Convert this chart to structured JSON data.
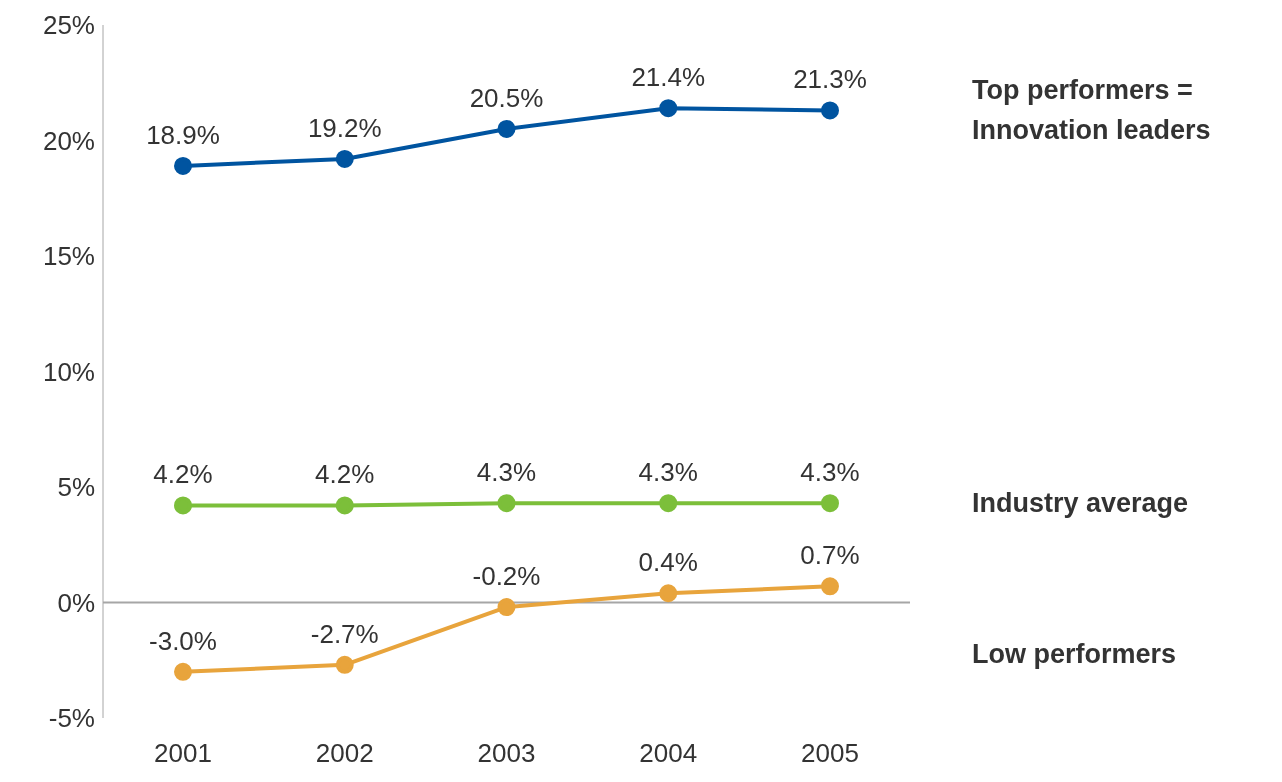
{
  "chart_data": {
    "type": "line",
    "categories": [
      "2001",
      "2002",
      "2003",
      "2004",
      "2005"
    ],
    "series": [
      {
        "name": "Top performers = Innovation leaders",
        "color": "#0054a0",
        "values": [
          18.9,
          19.2,
          20.5,
          21.4,
          21.3
        ],
        "value_labels": [
          "18.9%",
          "19.2%",
          "20.5%",
          "21.4%",
          "21.3%"
        ]
      },
      {
        "name": "Industry average",
        "color": "#7cbf3a",
        "values": [
          4.2,
          4.2,
          4.3,
          4.3,
          4.3
        ],
        "value_labels": [
          "4.2%",
          "4.2%",
          "4.3%",
          "4.3%",
          "4.3%"
        ]
      },
      {
        "name": "Low performers",
        "color": "#e8a43c",
        "values": [
          -3.0,
          -2.7,
          -0.2,
          0.4,
          0.7
        ],
        "value_labels": [
          "-3.0%",
          "-2.7%",
          "-0.2%",
          "0.4%",
          "0.7%"
        ]
      }
    ],
    "ylim": [
      -5,
      25
    ],
    "yticks": [
      {
        "value": -5,
        "label": "-5%"
      },
      {
        "value": 0,
        "label": "0%"
      },
      {
        "value": 5,
        "label": "5%"
      },
      {
        "value": 10,
        "label": "10%"
      },
      {
        "value": 15,
        "label": "15%"
      },
      {
        "value": 20,
        "label": "20%"
      },
      {
        "value": 25,
        "label": "25%"
      }
    ],
    "ref_lines": [
      {
        "axis": "y",
        "value": 0,
        "color": "#a6a6a6"
      }
    ],
    "marker": "circle",
    "line_style": "solid",
    "legend": "right"
  }
}
